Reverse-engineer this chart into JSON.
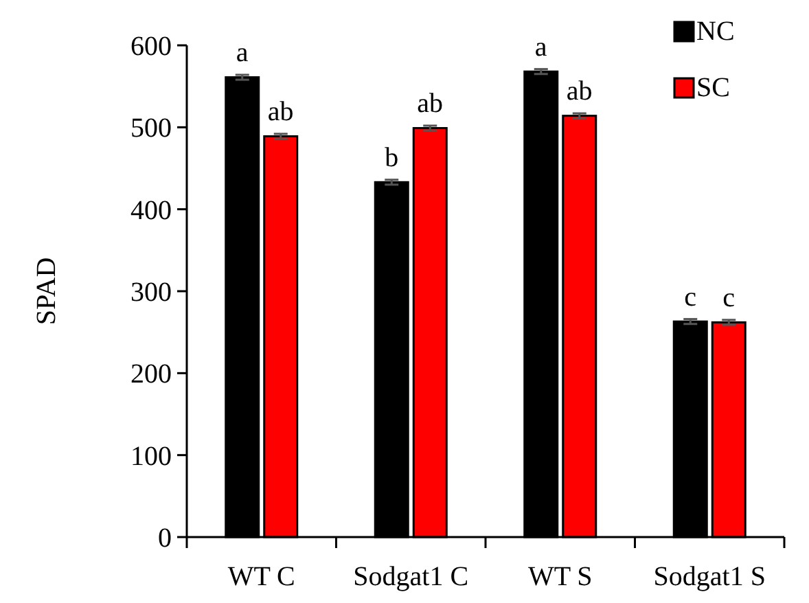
{
  "chart_data": {
    "type": "bar",
    "ylabel": "SPAD",
    "categories": [
      "WT C",
      "Sodgat1 C",
      "WT S",
      "Sodgat1 S"
    ],
    "series": [
      {
        "name": "NC",
        "color": "#000000",
        "values": [
          561,
          433,
          568,
          263
        ],
        "errors": [
          3,
          3,
          3,
          3
        ],
        "value_labels": [
          "a",
          "b",
          "a",
          "c"
        ]
      },
      {
        "name": "SC",
        "color": "#ff0000",
        "values": [
          489,
          499,
          514,
          262
        ],
        "errors": [
          3,
          3,
          3,
          3
        ],
        "value_labels": [
          "ab",
          "ab",
          "ab",
          "c"
        ]
      }
    ],
    "ylim": [
      0,
      600
    ],
    "yticks": [
      0,
      100,
      200,
      300,
      400,
      500,
      600
    ],
    "grid": false,
    "legend": "top right"
  }
}
